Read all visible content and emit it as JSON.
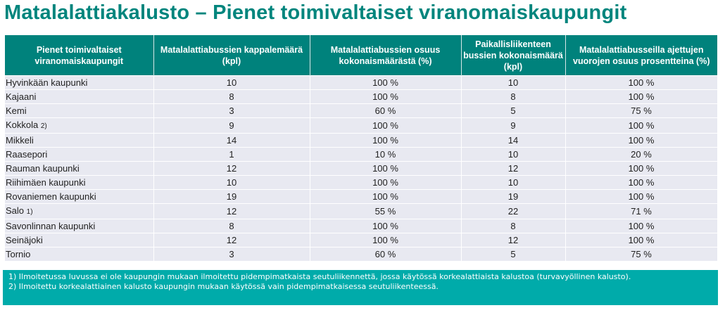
{
  "title": "Matalalattiakalusto – Pienet toimivaltaiset viranomaiskaupungit",
  "table": {
    "headers": [
      "Pienet toimivaltaiset viranomaiskaupungit",
      "Matalalattiabussien kappalemäärä (kpl)",
      "Matalalattiabussien osuus kokonaismäärästä (%)",
      "Paikallisliikenteen bussien kokonaismäärä (kpl)",
      "Matalalattiabusseilla ajettujen vuorojen osuus prosentteina (%)"
    ],
    "rows": [
      {
        "name": "Hyvinkään kaupunki",
        "note": "",
        "count": "10",
        "share": "100 %",
        "total": "10",
        "trips": "100 %"
      },
      {
        "name": "Kajaani",
        "note": "",
        "count": "8",
        "share": "100 %",
        "total": "8",
        "trips": "100 %"
      },
      {
        "name": "Kemi",
        "note": "",
        "count": "3",
        "share": "60 %",
        "total": "5",
        "trips": "75 %"
      },
      {
        "name": "Kokkola",
        "note": "2)",
        "count": "9",
        "share": "100 %",
        "total": "9",
        "trips": "100 %"
      },
      {
        "name": "Mikkeli",
        "note": "",
        "count": "14",
        "share": "100 %",
        "total": "14",
        "trips": "100 %"
      },
      {
        "name": "Raasepori",
        "note": "",
        "count": "1",
        "share": "10 %",
        "total": "10",
        "trips": "20 %"
      },
      {
        "name": "Rauman kaupunki",
        "note": "",
        "count": "12",
        "share": "100 %",
        "total": "12",
        "trips": "100 %"
      },
      {
        "name": "Riihimäen kaupunki",
        "note": "",
        "count": "10",
        "share": "100 %",
        "total": "10",
        "trips": "100 %"
      },
      {
        "name": "Rovaniemen kaupunki",
        "note": "",
        "count": "19",
        "share": "100 %",
        "total": "19",
        "trips": "100 %"
      },
      {
        "name": "Salo",
        "note": "1)",
        "count": "12",
        "share": "55 %",
        "total": "22",
        "trips": "71 %"
      },
      {
        "name": "Savonlinnan kaupunki",
        "note": "",
        "count": "8",
        "share": "100 %",
        "total": "8",
        "trips": "100 %"
      },
      {
        "name": "Seinäjoki",
        "note": "",
        "count": "12",
        "share": "100 %",
        "total": "12",
        "trips": "100 %"
      },
      {
        "name": "Tornio",
        "note": "",
        "count": "3",
        "share": "60 %",
        "total": "5",
        "trips": "75 %"
      }
    ]
  },
  "footnotes": [
    "1)  Ilmoitetussa luvussa ei ole kaupungin mukaan ilmoitettu pidempimatkaista seutuliikennettä, jossa käytössä korkealattiaista kalustoa (turvavyöllinen kalusto).",
    "2) Ilmoitettu korkealattiainen kalusto kaupungin mukaan käytössä vain pidempimatkaisessa seutuliikenteessä."
  ]
}
